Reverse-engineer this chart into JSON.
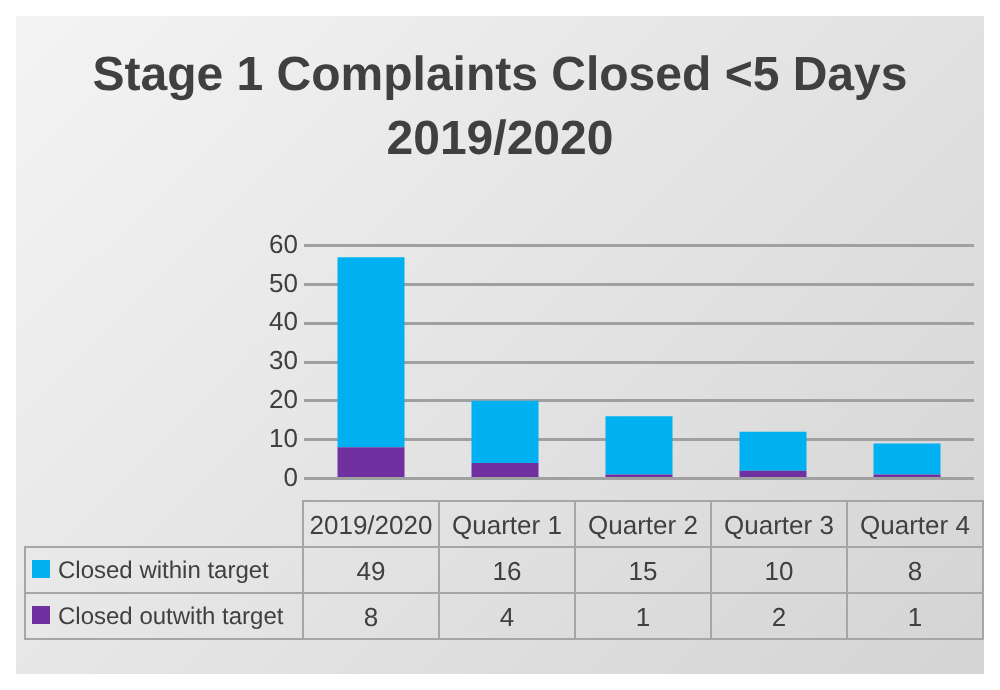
{
  "chart_data": {
    "type": "bar",
    "title": "Stage 1 Complaints Closed <5 Days\n2019/2020",
    "categories": [
      "2019/2020",
      "Quarter 1",
      "Quarter 2",
      "Quarter 3",
      "Quarter 4"
    ],
    "series": [
      {
        "name": "Closed outwith target",
        "color": "#7030a0",
        "values": [
          8,
          4,
          1,
          2,
          1
        ]
      },
      {
        "name": "Closed within target",
        "color": "#00b0f0",
        "values": [
          49,
          16,
          15,
          10,
          8
        ]
      }
    ],
    "stacked": true,
    "ylim": [
      0,
      60
    ],
    "yticks": [
      0,
      10,
      20,
      30,
      40,
      50,
      60
    ],
    "grid": "y",
    "legend": "bottom",
    "data_labels": true
  }
}
